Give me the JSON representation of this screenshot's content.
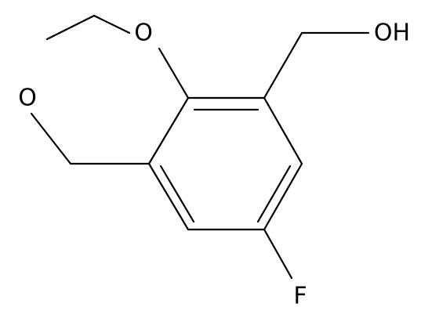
{
  "atoms": [
    {
      "label": "O"
    },
    {
      "label": "O"
    },
    {
      "label": "OH"
    },
    {
      "label": "F"
    }
  ]
}
